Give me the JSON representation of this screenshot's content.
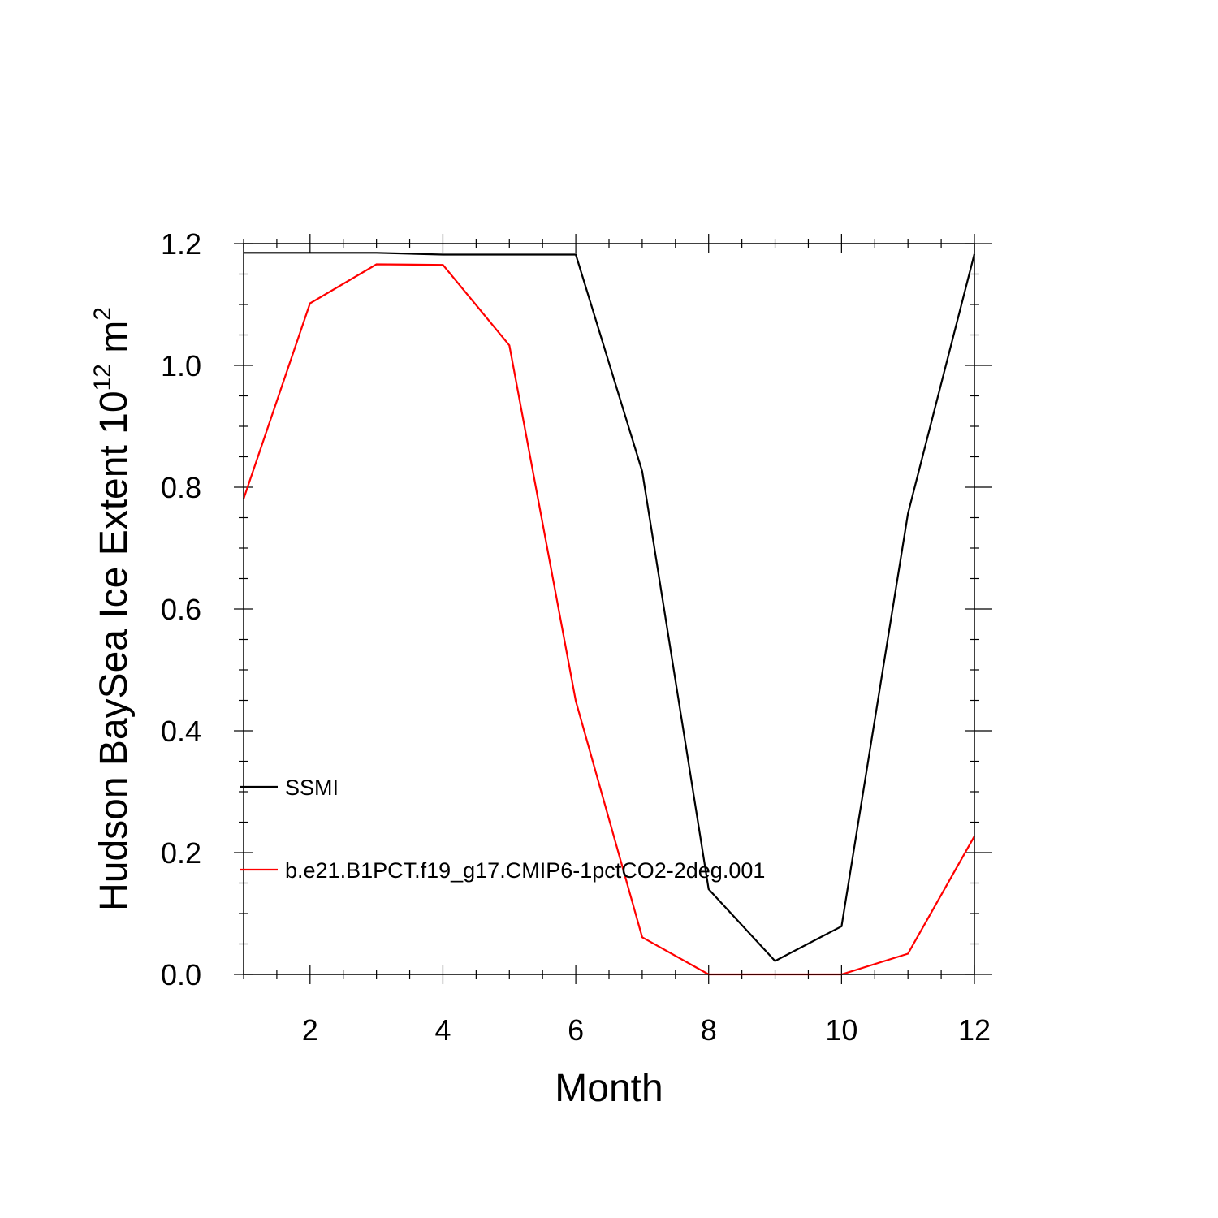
{
  "chart_data": {
    "type": "line",
    "title": "",
    "xlabel": "Month",
    "ylabel": {
      "main": "Hudson BaySea Ice Extent 10",
      "exponent": "12",
      "unit": " m",
      "unit_exponent": "2"
    },
    "xlim": [
      1,
      12
    ],
    "ylim": [
      0.0,
      1.2
    ],
    "x": [
      1,
      2,
      3,
      4,
      5,
      6,
      7,
      8,
      9,
      10,
      11,
      12
    ],
    "xticks": [
      2,
      4,
      6,
      8,
      10,
      12
    ],
    "xtick_labels": [
      "2",
      "4",
      "6",
      "8",
      "10",
      "12"
    ],
    "yticks": [
      0.0,
      0.2,
      0.4,
      0.6,
      0.8,
      1.0,
      1.2
    ],
    "ytick_labels": [
      "0.0",
      "0.2",
      "0.4",
      "0.6",
      "0.8",
      "1.0",
      "1.2"
    ],
    "grid": false,
    "legend_position": "lower-left",
    "series": [
      {
        "name": "SSMI",
        "color": "#000000",
        "values": [
          1.185,
          1.185,
          1.185,
          1.182,
          1.182,
          1.182,
          0.826,
          0.14,
          0.022,
          0.079,
          0.757,
          1.183
        ]
      },
      {
        "name": "b.e21.B1PCT.f19_g17.CMIP6-1pctCO2-2deg.001",
        "color": "#ff0000",
        "values": [
          0.781,
          1.102,
          1.166,
          1.165,
          1.033,
          0.449,
          0.061,
          0.0,
          0.0,
          0.0,
          0.034,
          0.227
        ]
      }
    ]
  }
}
